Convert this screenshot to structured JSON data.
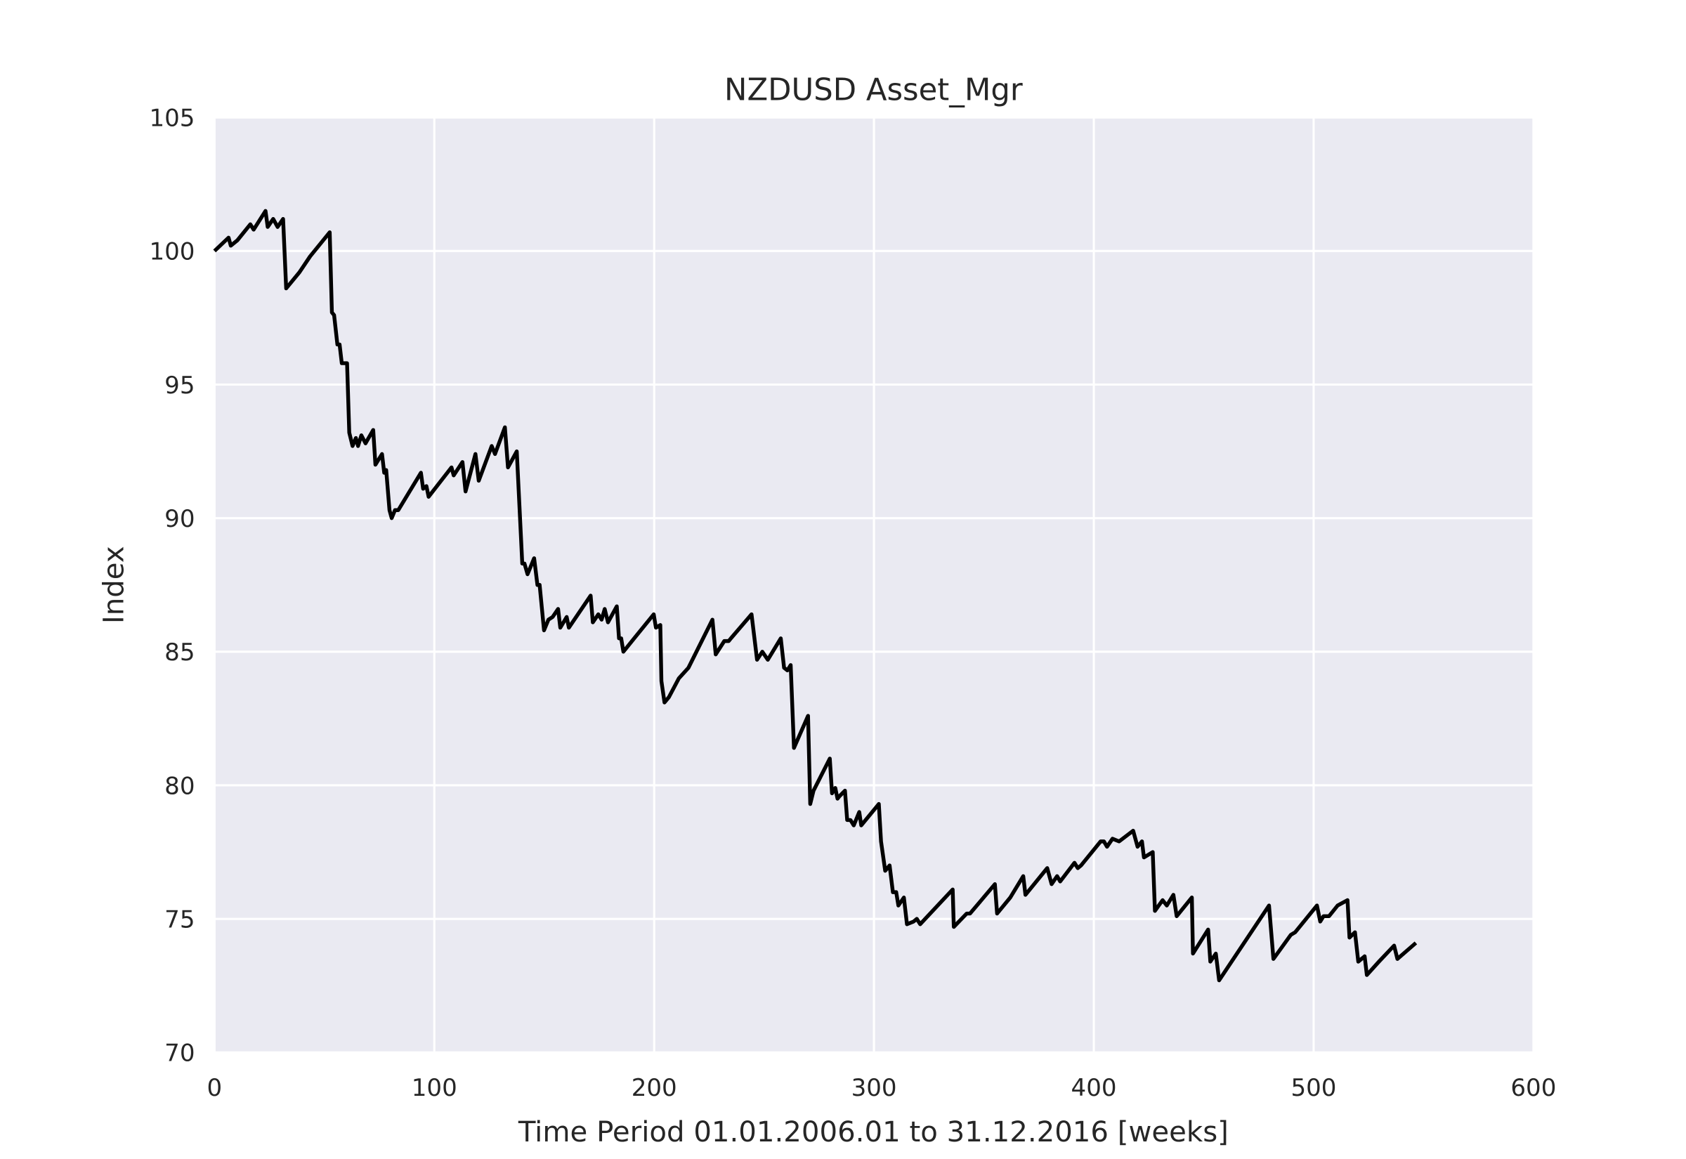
{
  "chart_data": {
    "type": "line",
    "title": "NZDUSD Asset_Mgr",
    "xlabel": "Time Period 01.01.2006.01 to 31.12.2016 [weeks]",
    "ylabel": "Index",
    "xlim": [
      0,
      600
    ],
    "ylim": [
      70,
      105
    ],
    "xticks": [
      0,
      100,
      200,
      300,
      400,
      500,
      600
    ],
    "yticks": [
      70,
      75,
      80,
      85,
      90,
      95,
      100,
      105
    ],
    "grid": true,
    "color": "#000000",
    "background": "#eaeaf2",
    "x": [
      0,
      6.4,
      7.4,
      10.4,
      16.3,
      17.8,
      23.2,
      24.2,
      26.7,
      28.7,
      31.2,
      32.6,
      38.6,
      43.5,
      52.4,
      53.4,
      54.4,
      55.9,
      56.9,
      57.9,
      60.3,
      61.3,
      62.8,
      64.3,
      65.3,
      66.8,
      68.7,
      72.2,
      73.2,
      76.2,
      77.2,
      78.1,
      79.6,
      80.6,
      82.1,
      83.6,
      93.9,
      94.9,
      96.4,
      97.4,
      107.8,
      108.8,
      112.8,
      114.2,
      118.7,
      120.2,
      126.1,
      127.6,
      132.1,
      133.5,
      137.5,
      140.0,
      141.0,
      142.4,
      145.4,
      146.9,
      147.9,
      149.9,
      151.9,
      153.8,
      156.3,
      157.3,
      160.2,
      161.2,
      171.1,
      172.1,
      174.6,
      176.1,
      177.5,
      179.0,
      183.0,
      184.0,
      185.0,
      186.0,
      190.9,
      199.8,
      200.8,
      202.8,
      203.3,
      204.7,
      206.7,
      211.2,
      215.6,
      226.5,
      228.0,
      231.9,
      233.9,
      234.9,
      244.3,
      246.8,
      249.2,
      251.7,
      257.6,
      259.1,
      260.6,
      262.1,
      263.6,
      270.0,
      271.0,
      272.5,
      279.9,
      280.9,
      282.4,
      283.4,
      284.4,
      286.8,
      287.8,
      289.3,
      290.8,
      293.3,
      294.2,
      302.2,
      303.2,
      305.1,
      307.1,
      308.6,
      310.1,
      311.1,
      313.6,
      315.0,
      318.0,
      319.5,
      321.0,
      335.8,
      336.3,
      342.2,
      343.7,
      355.0,
      356.0,
      362.0,
      367.9,
      368.9,
      378.8,
      380.8,
      383.3,
      384.7,
      391.2,
      392.7,
      394.2,
      403.1,
      404.6,
      406.0,
      408.5,
      411.5,
      417.9,
      419.9,
      421.9,
      422.8,
      426.8,
      427.8,
      431.3,
      433.2,
      436.2,
      437.7,
      444.6,
      445.1,
      452.0,
      453.0,
      455.5,
      457.0,
      479.7,
      481.7,
      489.6,
      491.6,
      501.5,
      503.0,
      504.5,
      507.0,
      510.9,
      515.4,
      516.3,
      518.8,
      520.3,
      523.2,
      524.2,
      529.7,
      536.6,
      538.1,
      546.5
    ],
    "values": [
      100.0,
      100.5,
      100.2,
      100.4,
      101.0,
      100.8,
      101.5,
      100.9,
      101.2,
      100.9,
      101.2,
      98.6,
      99.2,
      99.8,
      100.7,
      97.7,
      97.6,
      96.5,
      96.5,
      95.8,
      95.8,
      93.2,
      92.7,
      93.0,
      92.7,
      93.1,
      92.8,
      93.3,
      92.0,
      92.4,
      91.7,
      91.8,
      90.3,
      90.0,
      90.3,
      90.3,
      91.7,
      91.1,
      91.2,
      90.8,
      91.9,
      91.6,
      92.1,
      91.0,
      92.4,
      91.4,
      92.7,
      92.4,
      93.4,
      91.9,
      92.5,
      88.3,
      88.3,
      87.9,
      88.5,
      87.5,
      87.5,
      85.8,
      86.2,
      86.3,
      86.6,
      85.9,
      86.3,
      85.9,
      87.1,
      86.1,
      86.4,
      86.2,
      86.6,
      86.1,
      86.7,
      85.5,
      85.5,
      85.0,
      85.5,
      86.4,
      85.9,
      86.0,
      83.9,
      83.1,
      83.3,
      84.0,
      84.4,
      86.2,
      84.9,
      85.4,
      85.4,
      85.5,
      86.4,
      84.7,
      85.0,
      84.7,
      85.5,
      84.4,
      84.3,
      84.5,
      81.4,
      82.6,
      79.3,
      79.8,
      81.0,
      79.7,
      79.9,
      79.5,
      79.6,
      79.8,
      78.7,
      78.7,
      78.5,
      79.0,
      78.5,
      79.3,
      77.9,
      76.8,
      77.0,
      76.0,
      76.0,
      75.5,
      75.8,
      74.8,
      74.9,
      75.0,
      74.8,
      76.1,
      74.7,
      75.2,
      75.2,
      76.3,
      75.2,
      75.8,
      76.6,
      75.9,
      76.9,
      76.3,
      76.6,
      76.4,
      77.1,
      76.9,
      77.0,
      77.9,
      77.9,
      77.7,
      78.0,
      77.9,
      78.3,
      77.7,
      77.9,
      77.3,
      77.5,
      75.3,
      75.7,
      75.5,
      75.9,
      75.1,
      75.8,
      73.7,
      74.6,
      73.4,
      73.7,
      72.7,
      75.5,
      73.5,
      74.4,
      74.5,
      75.5,
      74.9,
      75.1,
      75.1,
      75.5,
      75.7,
      74.3,
      74.5,
      73.4,
      73.6,
      72.9,
      73.4,
      74.0,
      73.5,
      74.1
    ]
  }
}
